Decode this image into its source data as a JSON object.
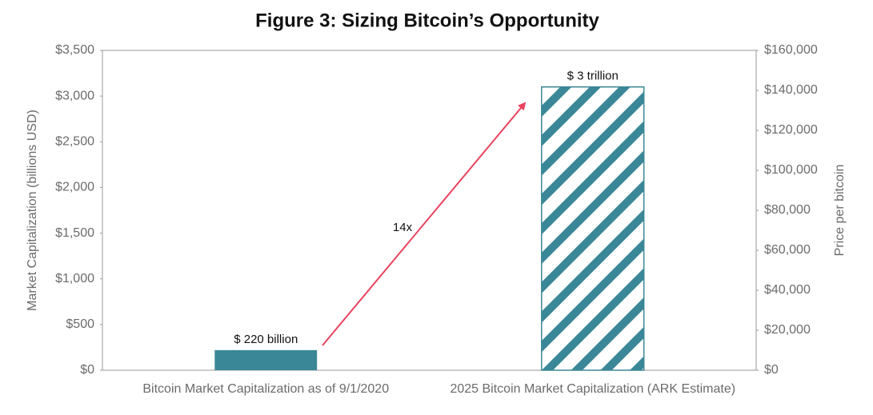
{
  "chart_data": {
    "type": "bar",
    "title": "Figure 3: Sizing Bitcoin’s Opportunity",
    "categories": [
      "Bitcoin Market Capitalization as of 9/1/2020",
      "2025 Bitcoin Market Capitalization (ARK Estimate)"
    ],
    "values": [
      220,
      3100
    ],
    "value_labels": [
      "$ 220 billion",
      "$ 3 trillion"
    ],
    "colors": [
      "#3a8797",
      "#3a8797"
    ],
    "hatched": [
      false,
      true
    ],
    "ylabel": "Market Capitalization (billions USD)",
    "y2label": "Price per bitcoin",
    "ylim": [
      0,
      3500
    ],
    "yticks": [
      {
        "value": 0,
        "label": "$0"
      },
      {
        "value": 500,
        "label": "$500"
      },
      {
        "value": 1000,
        "label": "$1,000"
      },
      {
        "value": 1500,
        "label": "$1,500"
      },
      {
        "value": 2000,
        "label": "$2,000"
      },
      {
        "value": 2500,
        "label": "$2,500"
      },
      {
        "value": 3000,
        "label": "$3,000"
      },
      {
        "value": 3500,
        "label": "$3,500"
      }
    ],
    "y2lim": [
      0,
      160000
    ],
    "y2ticks": [
      {
        "value": 0,
        "label": "$0"
      },
      {
        "value": 20000,
        "label": "$20,000"
      },
      {
        "value": 40000,
        "label": "$40,000"
      },
      {
        "value": 60000,
        "label": "$60,000"
      },
      {
        "value": 80000,
        "label": "$80,000"
      },
      {
        "value": 100000,
        "label": "$100,000"
      },
      {
        "value": 120000,
        "label": "$120,000"
      },
      {
        "value": 140000,
        "label": "$140,000"
      },
      {
        "value": 160000,
        "label": "$160,000"
      }
    ],
    "annotation": "14x",
    "grid": false
  }
}
